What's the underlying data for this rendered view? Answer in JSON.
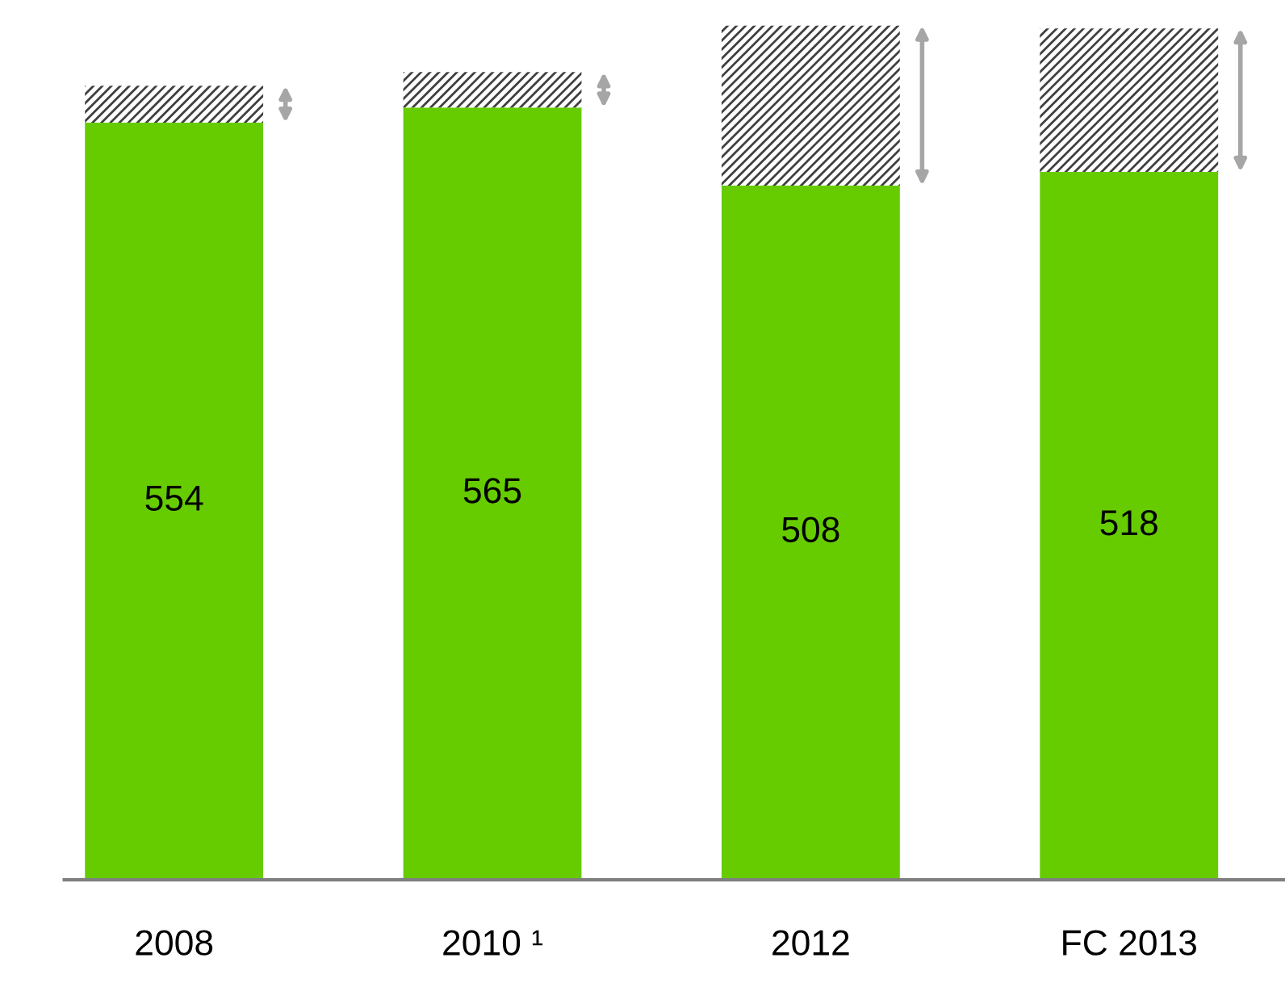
{
  "chart_data": {
    "type": "bar",
    "stacked": true,
    "categories": [
      "2008",
      "2010 ¹",
      "2012",
      "FC 2013"
    ],
    "series": [
      {
        "color": "#66cc00",
        "values": [
          554,
          565,
          508,
          518
        ],
        "value_labels": [
          "554",
          "565",
          "508",
          "518"
        ]
      },
      {
        "color": "#404040",
        "values": [
          27,
          26,
          117,
          105
        ]
      }
    ],
    "tick_labels": "x",
    "grid": false,
    "legend": false
  }
}
